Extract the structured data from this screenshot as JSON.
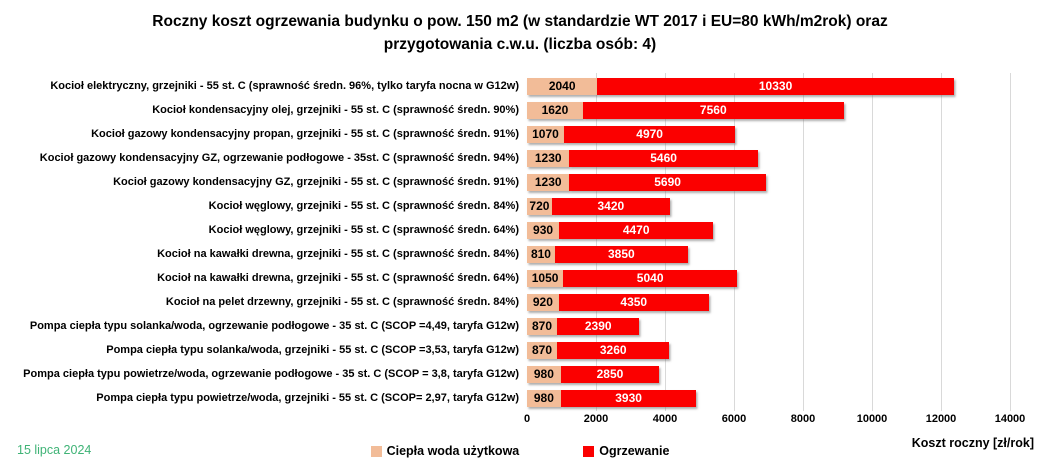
{
  "chart_data": {
    "type": "bar",
    "orientation": "horizontal",
    "stacked": true,
    "grid": true,
    "legend_position": "bottom",
    "title_lines": [
      "Roczny koszt ogrzewania budynku  o pow. 150 m2 (w standardzie WT 2017 i EU=80 kWh/m2rok) oraz",
      "przygotowania c.w.u. (liczba osób: 4)"
    ],
    "categories": [
      "Kocioł  elektryczny,  grzejniki - 55 st. C  (sprawność średn. 96%, tylko taryfa nocna w G12w)",
      "Kocioł  kondensacyjny olej,  grzejniki - 55 st. C   (sprawność średn. 90%)",
      "Kocioł gazowy kondensacyjny propan, grzejniki - 55 st. C  (sprawność średn. 91%)",
      "Kocioł gazowy kondensacyjny GZ, ogrzewanie podłogowe - 35st. C   (sprawność średn. 94%)",
      "Kocioł gazowy kondensacyjny GZ, grzejniki - 55 st. C   (sprawność średn. 91%)",
      "Kocioł węglowy,  grzejniki - 55 st. C   (sprawność średn. 84%)",
      "Kocioł węglowy,  grzejniki - 55 st. C  (sprawność średn. 64%)",
      "Kocioł na kawałki drewna, grzejniki - 55 st. C (sprawność średn. 84%)",
      "Kocioł na kawałki drewna, grzejniki - 55 st. C  (sprawność średn. 64%)",
      "Kocioł na pelet drzewny, grzejniki - 55 st. C (sprawność średn. 84%)",
      "Pompa ciepła typu solanka/woda, ogrzewanie podłogowe - 35 st. C  (SCOP =4,49, taryfa G12w)",
      "Pompa ciepła typu solanka/woda, grzejniki - 55 st. C (SCOP =3,53, taryfa G12w)",
      "Pompa ciepła typu powietrze/woda, ogrzewanie podłogowe - 35 st. C (SCOP = 3,8, taryfa G12w)",
      "Pompa ciepła typu powietrze/woda, grzejniki - 55 st. C (SCOP= 2,97, taryfa G12w)"
    ],
    "series": [
      {
        "name": "Ciepła woda użytkowa",
        "color": "#F2BC98",
        "values": [
          2040,
          1620,
          1070,
          1230,
          1230,
          720,
          930,
          810,
          1050,
          920,
          870,
          870,
          980,
          980
        ]
      },
      {
        "name": "Ogrzewanie",
        "color": "#FB0000",
        "values": [
          10330,
          7560,
          4970,
          5460,
          5690,
          3420,
          4470,
          3850,
          5040,
          4350,
          2390,
          3260,
          2850,
          3930
        ]
      }
    ],
    "xticks": [
      "0",
      "2000",
      "4000",
      "6000",
      "8000",
      "10000",
      "12000",
      "14000"
    ],
    "xlim": [
      0,
      14000
    ],
    "xlabel": "Koszt roczny [zł/rok]"
  },
  "footer": {
    "date": "15 lipca 2024",
    "date_color": "#3FB376"
  }
}
